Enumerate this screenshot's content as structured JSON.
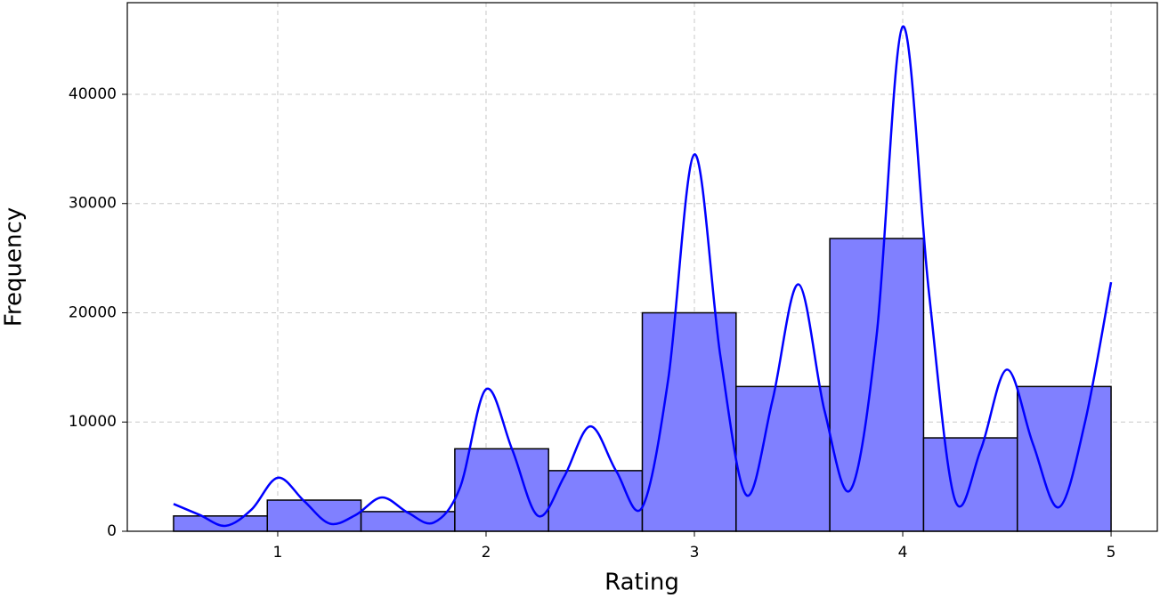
{
  "chart_data": {
    "type": "histogram",
    "xlabel": "Rating",
    "ylabel": "Frequency",
    "bins": [
      0.5,
      0.95,
      1.4,
      1.85,
      2.3,
      2.75,
      3.2,
      3.65,
      4.1,
      4.55,
      5.0
    ],
    "values": [
      1400,
      2850,
      1800,
      7550,
      5550,
      20000,
      13250,
      26800,
      8550,
      13250
    ],
    "color": "#8080ff",
    "edgecolor": "#000000",
    "line": {
      "color": "#0000ff",
      "x": [
        0.5,
        0.625,
        0.75,
        0.875,
        1.0,
        1.125,
        1.25,
        1.375,
        1.5,
        1.625,
        1.75,
        1.875,
        2.0,
        2.125,
        2.25,
        2.375,
        2.5,
        2.625,
        2.75,
        2.875,
        3.0,
        3.125,
        3.25,
        3.375,
        3.5,
        3.625,
        3.75,
        3.875,
        4.0,
        4.125,
        4.25,
        4.375,
        4.5,
        4.625,
        4.75,
        4.875,
        5.0
      ],
      "values": [
        2500,
        1500,
        500,
        2000,
        4900,
        2800,
        700,
        1500,
        3100,
        1700,
        800,
        4000,
        13000,
        7500,
        1400,
        5000,
        9600,
        5500,
        2200,
        14000,
        34500,
        16000,
        3300,
        12000,
        22600,
        11000,
        3800,
        18000,
        46200,
        22000,
        2900,
        7500,
        14800,
        8000,
        2200,
        10000,
        22800
      ]
    },
    "xlim": [
      0.278,
      5.222
    ],
    "ylim": [
      0,
      48390
    ],
    "xticks": [
      1,
      2,
      3,
      4,
      5
    ],
    "yticks": [
      0,
      10000,
      20000,
      30000,
      40000
    ],
    "grid": true
  }
}
